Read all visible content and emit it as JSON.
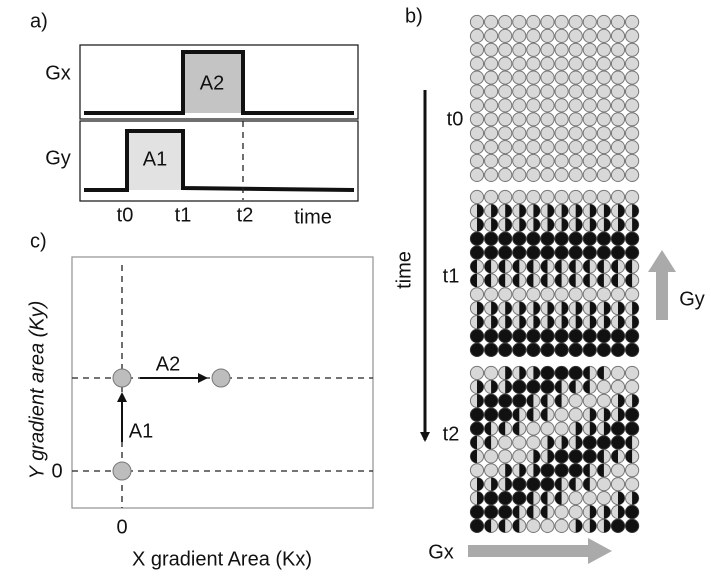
{
  "panel_a": {
    "label": "a)",
    "gx_label": "Gx",
    "gy_label": "Gy",
    "gx_area": "A2",
    "gy_area": "A1",
    "time_points": [
      "t0",
      "t1",
      "t2"
    ],
    "time_axis": "time"
  },
  "panel_b": {
    "label": "b)",
    "time_points": [
      "t0",
      "t1",
      "t2"
    ],
    "time_axis": "time",
    "gy_arrow": "Gy",
    "gx_arrow": "Gx"
  },
  "panel_c": {
    "label": "c)",
    "y_axis": "Y gradient area (Ky)",
    "x_axis": "X gradient Area (Kx)",
    "y_origin": "0",
    "x_origin": "0",
    "step_y": "A1",
    "step_x": "A2"
  }
}
